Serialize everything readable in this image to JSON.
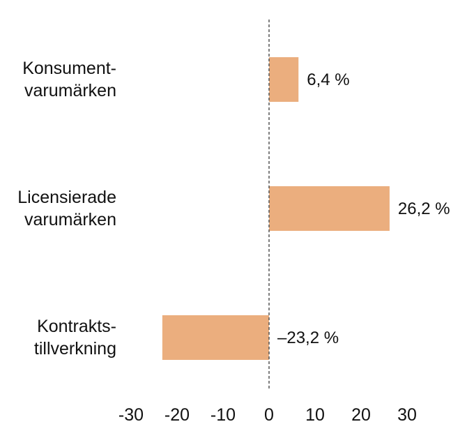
{
  "chart_data": {
    "type": "bar",
    "orientation": "horizontal",
    "categories": [
      [
        "Konsument-",
        "varumärken"
      ],
      [
        "Licensierade",
        "varumärken"
      ],
      [
        "Kontrakts-",
        "tillverkning"
      ]
    ],
    "values": [
      6.4,
      26.2,
      -23.2
    ],
    "value_labels": [
      "6,4 %",
      "26,2 %",
      "–23,2 %"
    ],
    "xlim": [
      -30,
      30
    ],
    "x_ticks": [
      -30,
      -20,
      -10,
      0,
      10,
      20,
      30
    ],
    "x_tick_labels": [
      "-30",
      "-20",
      "-10",
      "0",
      "10",
      "20",
      "30"
    ],
    "zero_line": "dashed",
    "grid": false,
    "bar_color": "#EBAE7E",
    "zero_line_color": "#555555"
  }
}
